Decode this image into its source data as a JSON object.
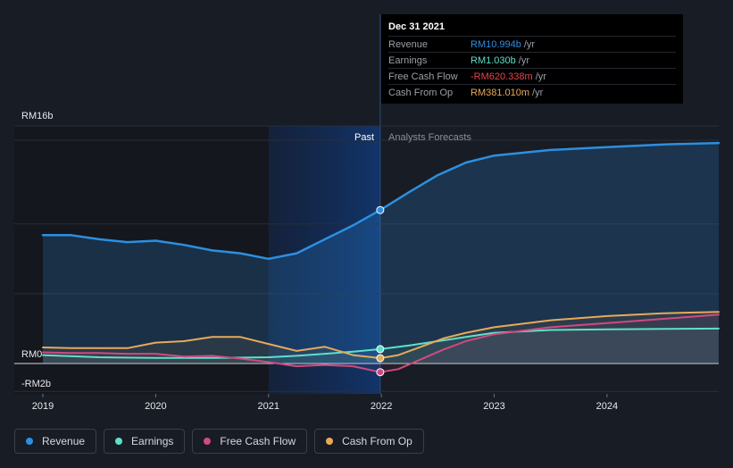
{
  "colors": {
    "revenue": "#2d8fe0",
    "earnings": "#5ee0c8",
    "free_cash_flow": "#d04a80",
    "cash_from_op": "#e8a95a",
    "tt_revenue": "#2d8fe0",
    "tt_earnings": "#5ee0c8",
    "tt_fcf": "#e8434a",
    "tt_cfo": "#e8a95a"
  },
  "tooltip": {
    "date": "Dec 31 2021",
    "rows": [
      {
        "label": "Revenue",
        "value": "RM10.994b",
        "unit": "/yr"
      },
      {
        "label": "Earnings",
        "value": "RM1.030b",
        "unit": "/yr"
      },
      {
        "label": "Free Cash Flow",
        "value": "-RM620.338m",
        "unit": "/yr"
      },
      {
        "label": "Cash From Op",
        "value": "RM381.010m",
        "unit": "/yr"
      }
    ]
  },
  "sections": {
    "past": "Past",
    "forecast": "Analysts Forecasts"
  },
  "legend": [
    {
      "label": "Revenue",
      "color": "#2d8fe0"
    },
    {
      "label": "Earnings",
      "color": "#5ee0c8"
    },
    {
      "label": "Free Cash Flow",
      "color": "#d04a80"
    },
    {
      "label": "Cash From Op",
      "color": "#e8a95a"
    }
  ],
  "chart_data": {
    "type": "line",
    "y_tick_labels": [
      "RM16b",
      "RM0",
      "-RM2b"
    ],
    "x_tick_labels": [
      "2019",
      "2020",
      "2021",
      "2022",
      "2023",
      "2024"
    ],
    "ylim": [
      -2,
      16
    ],
    "xlim": [
      2019,
      2024.99
    ],
    "past_end": 2021.99,
    "highlight_start": 2021.0,
    "series": [
      {
        "name": "Revenue",
        "key": "revenue",
        "x": [
          2019.0,
          2019.25,
          2019.5,
          2019.75,
          2020.0,
          2020.25,
          2020.5,
          2020.75,
          2021.0,
          2021.25,
          2021.5,
          2021.75,
          2021.99,
          2022.25,
          2022.5,
          2022.75,
          2023.0,
          2023.5,
          2024.0,
          2024.5,
          2024.99
        ],
        "y": [
          9.2,
          9.2,
          8.9,
          8.7,
          8.8,
          8.5,
          8.1,
          7.9,
          7.5,
          7.9,
          8.9,
          9.9,
          10.994,
          12.3,
          13.5,
          14.4,
          14.9,
          15.3,
          15.5,
          15.7,
          15.8
        ]
      },
      {
        "name": "Earnings",
        "key": "earnings",
        "x": [
          2019.0,
          2019.5,
          2020.0,
          2020.5,
          2021.0,
          2021.25,
          2021.5,
          2021.75,
          2021.99,
          2022.25,
          2022.5,
          2022.75,
          2023.0,
          2023.5,
          2024.0,
          2024.5,
          2024.99
        ],
        "y": [
          0.6,
          0.45,
          0.4,
          0.4,
          0.45,
          0.55,
          0.7,
          0.85,
          1.03,
          1.3,
          1.6,
          1.9,
          2.2,
          2.4,
          2.45,
          2.48,
          2.5
        ]
      },
      {
        "name": "Free Cash Flow",
        "key": "free_cash_flow",
        "x": [
          2019.0,
          2019.25,
          2019.5,
          2019.75,
          2020.0,
          2020.25,
          2020.5,
          2020.75,
          2021.0,
          2021.25,
          2021.5,
          2021.75,
          2021.99,
          2022.15,
          2022.35,
          2022.55,
          2022.75,
          2023.0,
          2023.5,
          2024.0,
          2024.5,
          2024.99
        ],
        "y": [
          0.8,
          0.75,
          0.75,
          0.7,
          0.7,
          0.5,
          0.55,
          0.35,
          0.1,
          -0.2,
          -0.1,
          -0.2,
          -0.62,
          -0.4,
          0.3,
          1.0,
          1.6,
          2.1,
          2.6,
          2.9,
          3.2,
          3.5
        ]
      },
      {
        "name": "Cash From Op",
        "key": "cash_from_op",
        "x": [
          2019.0,
          2019.25,
          2019.5,
          2019.75,
          2020.0,
          2020.25,
          2020.5,
          2020.75,
          2021.0,
          2021.25,
          2021.5,
          2021.75,
          2021.99,
          2022.15,
          2022.35,
          2022.55,
          2022.75,
          2023.0,
          2023.5,
          2024.0,
          2024.5,
          2024.99
        ],
        "y": [
          1.15,
          1.1,
          1.1,
          1.1,
          1.5,
          1.6,
          1.9,
          1.9,
          1.4,
          0.9,
          1.2,
          0.6,
          0.381,
          0.6,
          1.2,
          1.8,
          2.2,
          2.6,
          3.1,
          3.4,
          3.6,
          3.7
        ]
      }
    ]
  }
}
